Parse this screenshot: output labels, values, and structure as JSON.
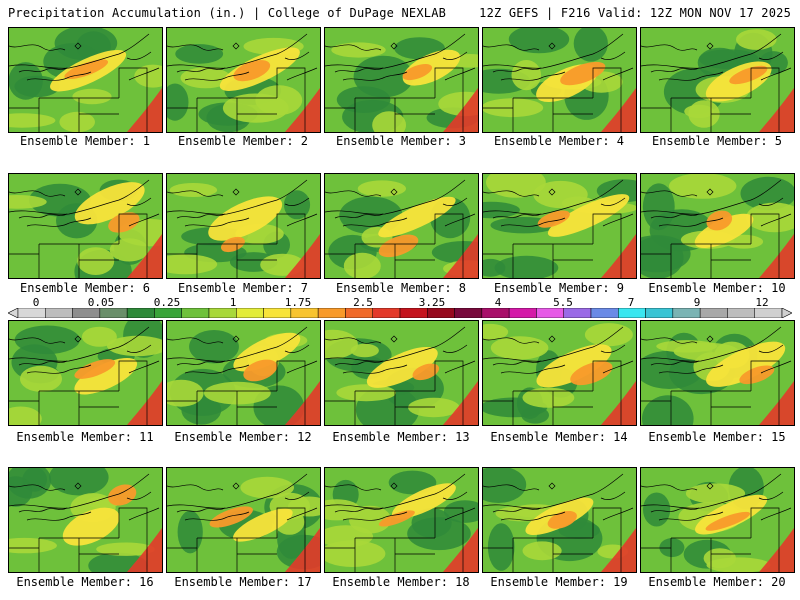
{
  "header": {
    "title_left": "Precipitation Accumulation (in.) | College of DuPage NEXLAB",
    "title_right": "12Z GEFS | F216 Valid: 12Z MON NOV 17 2025"
  },
  "colorbar": {
    "labels": [
      "0",
      "0.05",
      "0.25",
      "1",
      "1.75",
      "2.5",
      "3.25",
      "4",
      "5.5",
      "7",
      "9",
      "12"
    ],
    "colors": [
      "#d8d8d8",
      "#bdbdbd",
      "#8e8e8e",
      "#6a8f6a",
      "#2f8a3a",
      "#3aa43a",
      "#6ec13b",
      "#a8d83a",
      "#e3ec3a",
      "#f8e43a",
      "#f8c430",
      "#f89a2a",
      "#f06a2a",
      "#e33a2a",
      "#c4141e",
      "#960a1e",
      "#780a3c",
      "#a8106a",
      "#d41aa8",
      "#e65ae6",
      "#9a6ae6",
      "#6a8ae6",
      "#3ae6f0",
      "#3ac4d4",
      "#7ab4b4",
      "#a8a8a8",
      "#bdbdbd",
      "#d0d0d0"
    ]
  },
  "panels": [
    {
      "label": "Ensemble Member: 1"
    },
    {
      "label": "Ensemble Member: 2"
    },
    {
      "label": "Ensemble Member: 3"
    },
    {
      "label": "Ensemble Member: 4"
    },
    {
      "label": "Ensemble Member: 5"
    },
    {
      "label": "Ensemble Member: 6"
    },
    {
      "label": "Ensemble Member: 7"
    },
    {
      "label": "Ensemble Member: 8"
    },
    {
      "label": "Ensemble Member: 9"
    },
    {
      "label": "Ensemble Member: 10"
    },
    {
      "label": "Ensemble Member: 11"
    },
    {
      "label": "Ensemble Member: 12"
    },
    {
      "label": "Ensemble Member: 13"
    },
    {
      "label": "Ensemble Member: 14"
    },
    {
      "label": "Ensemble Member: 15"
    },
    {
      "label": "Ensemble Member: 16"
    },
    {
      "label": "Ensemble Member: 17"
    },
    {
      "label": "Ensemble Member: 18"
    },
    {
      "label": "Ensemble Member: 19"
    },
    {
      "label": "Ensemble Member: 20"
    }
  ]
}
